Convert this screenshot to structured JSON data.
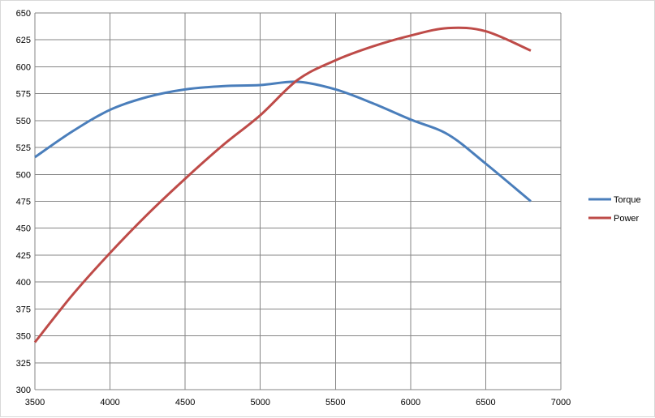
{
  "colors": {
    "torque": "#4a7ebb",
    "power": "#be4b48",
    "grid": "#868686",
    "axis": "#868686"
  },
  "chart_data": {
    "type": "line",
    "title": "",
    "xlabel": "",
    "ylabel": "",
    "xlim": [
      3500,
      7000
    ],
    "ylim": [
      300,
      650
    ],
    "x_ticks": [
      3500,
      4000,
      4500,
      5000,
      5500,
      6000,
      6500,
      7000
    ],
    "y_ticks": [
      300,
      325,
      350,
      375,
      400,
      425,
      450,
      475,
      500,
      525,
      550,
      575,
      600,
      625,
      650
    ],
    "grid": true,
    "legend_position": "right",
    "series": [
      {
        "name": "Torque",
        "color": "#4a7ebb",
        "x": [
          3500,
          3750,
          4000,
          4250,
          4500,
          4750,
          5000,
          5250,
          5500,
          5750,
          6000,
          6250,
          6500,
          6800
        ],
        "y": [
          516,
          540,
          560,
          572,
          579,
          582,
          583,
          586,
          579,
          566,
          551,
          537,
          510,
          475
        ]
      },
      {
        "name": "Power",
        "color": "#be4b48",
        "x": [
          3500,
          3750,
          4000,
          4250,
          4500,
          4750,
          5000,
          5250,
          5500,
          5750,
          6000,
          6250,
          6500,
          6800
        ],
        "y": [
          344,
          388,
          427,
          463,
          496,
          527,
          555,
          588,
          606,
          619,
          629,
          636,
          633,
          615
        ]
      }
    ]
  }
}
